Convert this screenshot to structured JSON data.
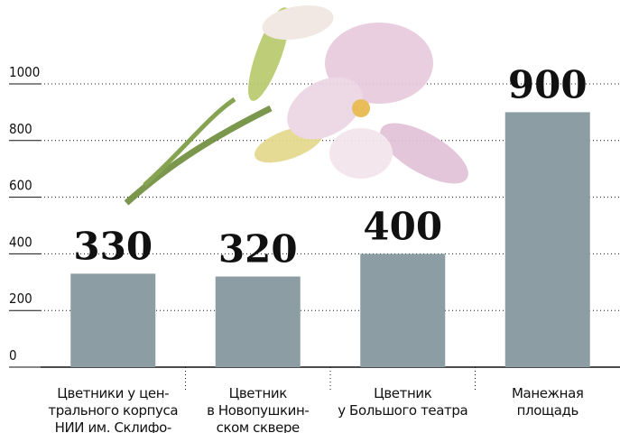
{
  "chart_data": {
    "type": "bar",
    "categories": [
      "Цветники у цен-\nтрального корпуса\nНИИ им. Склифо-",
      "Цветник\nв Новопушкин-\nском сквере",
      "Цветник\nу Большого театра",
      "Манежная\nплощадь"
    ],
    "values": [
      330,
      320,
      400,
      900
    ],
    "color": "#8c9ea4",
    "ylim": [
      0,
      1000
    ],
    "yticks": [
      0,
      200,
      400,
      600,
      800,
      1000
    ],
    "grid": true
  }
}
